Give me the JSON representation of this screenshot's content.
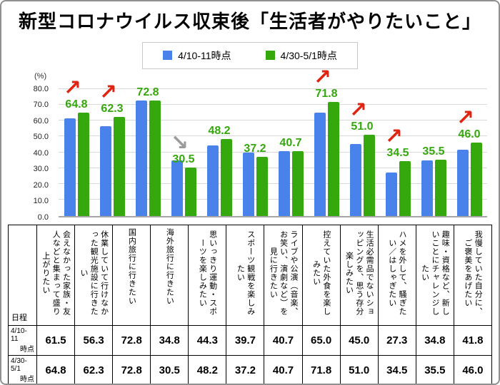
{
  "header": {
    "title": "新型コロナウイルス収束後「生活者がやりたいこと」"
  },
  "legend": {
    "items": [
      {
        "label": "4/10-11時点",
        "color": "#4A82EC"
      },
      {
        "label": "4/30-5/1時点",
        "color": "#35A80D"
      }
    ]
  },
  "chart_data": {
    "type": "bar",
    "unit_label": "(%)",
    "ylim": [
      0,
      80
    ],
    "ytick_step": 10,
    "grid": "horizontal",
    "legend_position": "top-center",
    "categories": [
      "会えなかった家族・友人などと集まって盛り上がりたい",
      "休業していて行けなかった観光施設に行きたい",
      "国内旅行に行きたい",
      "海外旅行に行きたい",
      "思いっきり運動・スポーツを楽しみたい",
      "スポーツ観戦を楽しみたい",
      "ライブや公演（音楽、お笑い、演劇など）を見に行きたい",
      "控えていた外食を楽しみたい",
      "生活必需品でないショッピングを、思う存分楽しみたい",
      "ハメを外して、騒ぎたい／はしゃぎたい",
      "趣味・資格など、新しいことにチャレンジしたい",
      "我慢していた自分に、ご褒美をあげたい"
    ],
    "series": [
      {
        "name": "4/10-11時点",
        "color": "#4A82EC",
        "values": [
          61.5,
          56.3,
          72.8,
          34.8,
          44.3,
          39.7,
          40.7,
          65.0,
          45.0,
          27.3,
          34.8,
          41.8
        ]
      },
      {
        "name": "4/30-5/1時点",
        "color": "#35A80D",
        "values": [
          64.8,
          62.3,
          72.8,
          30.5,
          48.2,
          37.2,
          40.7,
          71.8,
          51.0,
          34.5,
          35.5,
          46.0
        ]
      }
    ],
    "bar_label_series": 1,
    "bar_label_color": "#35A80D",
    "arrows": [
      "up",
      "up",
      null,
      "down",
      null,
      null,
      null,
      "up",
      "up",
      "up",
      null,
      "up"
    ],
    "arrow_glyphs": {
      "up": "↗",
      "down": "↘"
    },
    "arrow_colors": {
      "up": "#E02412",
      "down": "#9B9B9B"
    }
  },
  "table": {
    "corner_label": "日程",
    "row_headers": [
      {
        "line1": "4/10-11",
        "line2": "時点"
      },
      {
        "line1": "4/30-5/1",
        "line2": "時点"
      }
    ]
  }
}
